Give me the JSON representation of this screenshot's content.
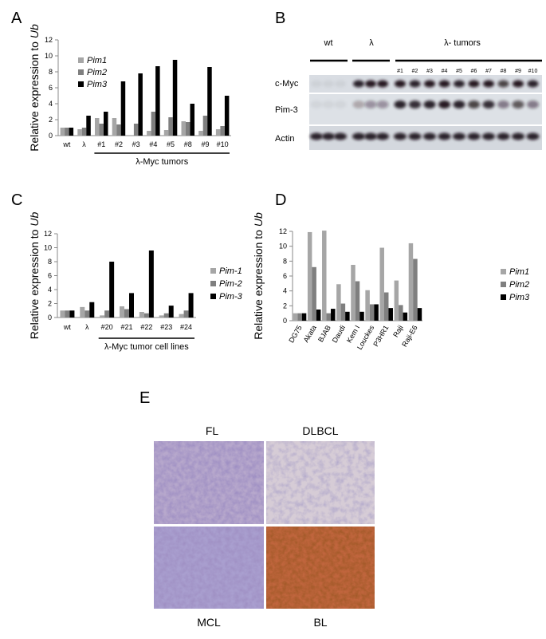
{
  "panels": {
    "A": "A",
    "B": "B",
    "C": "C",
    "D": "D",
    "E": "E"
  },
  "colors": {
    "pim1": "#a6a6a6",
    "pim2": "#7f7f7f",
    "pim3": "#000000"
  },
  "chart_data": [
    {
      "id": "A",
      "type": "bar",
      "ylabel_prefix": "Relative expression to ",
      "ylabel_italic": "Ub",
      "ylim": [
        0,
        12
      ],
      "yticks": [
        "0",
        "2",
        "4",
        "6",
        "8",
        "10",
        "12"
      ],
      "categories": [
        "wt",
        "λ",
        "#1",
        "#2",
        "#3",
        "#4",
        "#5",
        "#8",
        "#9",
        "#10"
      ],
      "group_label": "λ-Myc tumors",
      "series": [
        {
          "name": "Pim1",
          "values": [
            1.0,
            0.8,
            2.2,
            2.2,
            0.0,
            0.6,
            0.7,
            1.8,
            0.6,
            0.8
          ]
        },
        {
          "name": "Pim2",
          "values": [
            1.0,
            1.0,
            1.5,
            1.4,
            1.5,
            3.0,
            2.3,
            1.7,
            2.5,
            1.2
          ]
        },
        {
          "name": "Pim3",
          "values": [
            1.0,
            2.5,
            3.0,
            6.8,
            7.8,
            8.7,
            9.5,
            4.0,
            8.6,
            5.0
          ]
        }
      ]
    },
    {
      "id": "C",
      "type": "bar",
      "ylabel_prefix": "Relative expression to ",
      "ylabel_italic": "Ub",
      "ylim": [
        0,
        12
      ],
      "yticks": [
        "0",
        "2",
        "4",
        "6",
        "8",
        "10",
        "12"
      ],
      "categories": [
        "wt",
        "λ",
        "#20",
        "#21",
        "#22",
        "#23",
        "#24"
      ],
      "group_label": "λ-Myc  tumor cell lines",
      "series": [
        {
          "name": "Pim-1",
          "values": [
            1.0,
            1.5,
            0.3,
            1.6,
            0.8,
            0.3,
            0.5
          ]
        },
        {
          "name": "Pim-2",
          "values": [
            1.0,
            1.0,
            1.0,
            1.2,
            0.6,
            0.6,
            1.0
          ]
        },
        {
          "name": "Pim-3",
          "values": [
            1.0,
            2.2,
            8.0,
            3.5,
            9.6,
            1.7,
            3.5
          ]
        }
      ]
    },
    {
      "id": "D",
      "type": "bar",
      "ylabel_prefix": "Relative expression to ",
      "ylabel_italic": "Ub",
      "ylim": [
        0,
        12
      ],
      "yticks": [
        "0",
        "2",
        "4",
        "6",
        "8",
        "10",
        "12"
      ],
      "categories": [
        "DG75",
        "Akata",
        "BJAB",
        "Daudi",
        "Kem I",
        "Louckes",
        "P3HR1",
        "Raji",
        "Raji-E6"
      ],
      "series": [
        {
          "name": "Pim1",
          "values": [
            1.0,
            11.9,
            12.1,
            4.9,
            7.5,
            4.1,
            9.8,
            5.4,
            10.4
          ]
        },
        {
          "name": "Pim2",
          "values": [
            1.0,
            7.2,
            1.0,
            2.3,
            5.3,
            2.2,
            3.8,
            2.1,
            8.3
          ]
        },
        {
          "name": "Pim3",
          "values": [
            1.0,
            1.5,
            1.6,
            1.2,
            1.2,
            2.2,
            1.7,
            1.1,
            1.7
          ]
        }
      ]
    }
  ],
  "blot": {
    "groups": [
      "wt",
      "λ",
      "λ- tumors"
    ],
    "tumor_lanes": [
      "#1",
      "#2",
      "#3",
      "#4",
      "#5",
      "#6",
      "#7",
      "#8",
      "#9",
      "#10"
    ],
    "rows": [
      "c-Myc",
      "Pim-3",
      "Actin"
    ]
  },
  "micro": {
    "labels": [
      "FL",
      "DLBCL",
      "MCL",
      "BL"
    ]
  }
}
